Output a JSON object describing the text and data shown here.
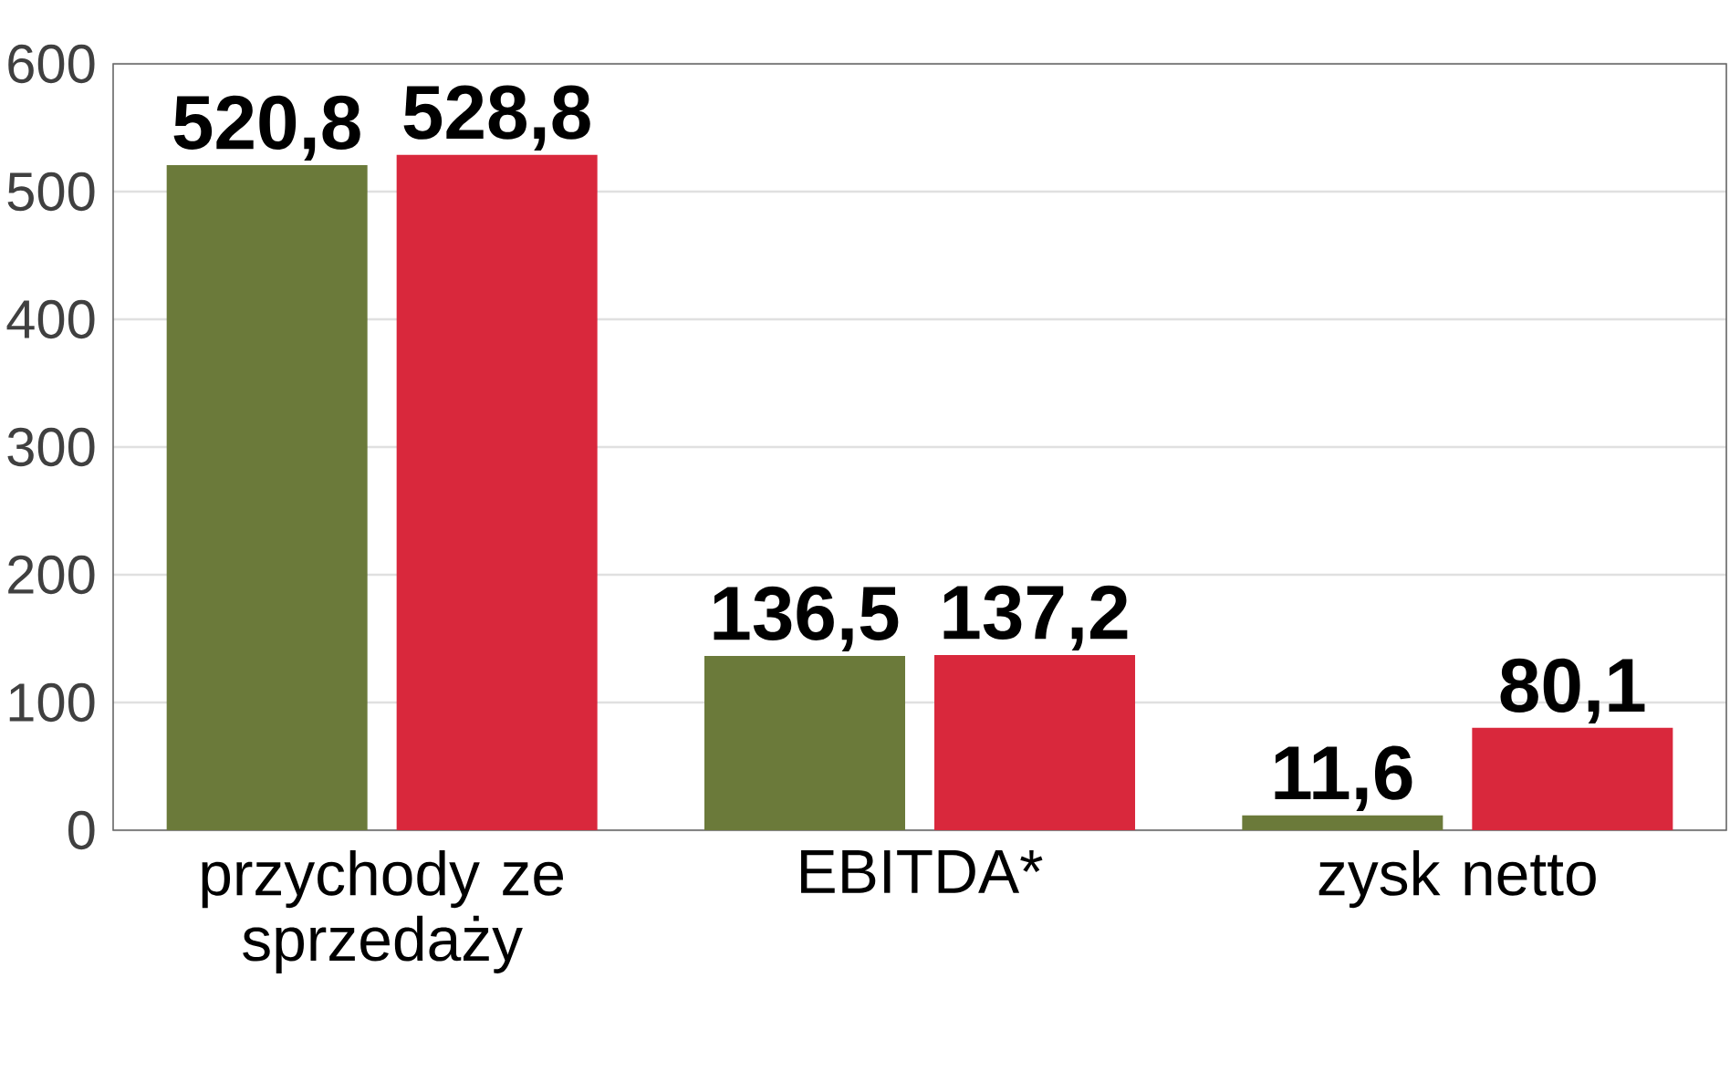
{
  "chart_data": {
    "type": "bar",
    "categories": [
      "przychody ze sprzedaży",
      "EBITDA*",
      "zysk netto"
    ],
    "series": [
      {
        "color": "#6b7a3a",
        "values": [
          520.8,
          136.5,
          11.6
        ],
        "value_labels": [
          "520,8",
          "136,5",
          "11,6"
        ]
      },
      {
        "color": "#d9283c",
        "values": [
          528.8,
          137.2,
          80.1
        ],
        "value_labels": [
          "528,8",
          "137,2",
          "80,1"
        ]
      }
    ],
    "ylim": [
      0,
      600
    ],
    "yticks": [
      0,
      100,
      200,
      300,
      400,
      500,
      600
    ],
    "grid": "y"
  }
}
